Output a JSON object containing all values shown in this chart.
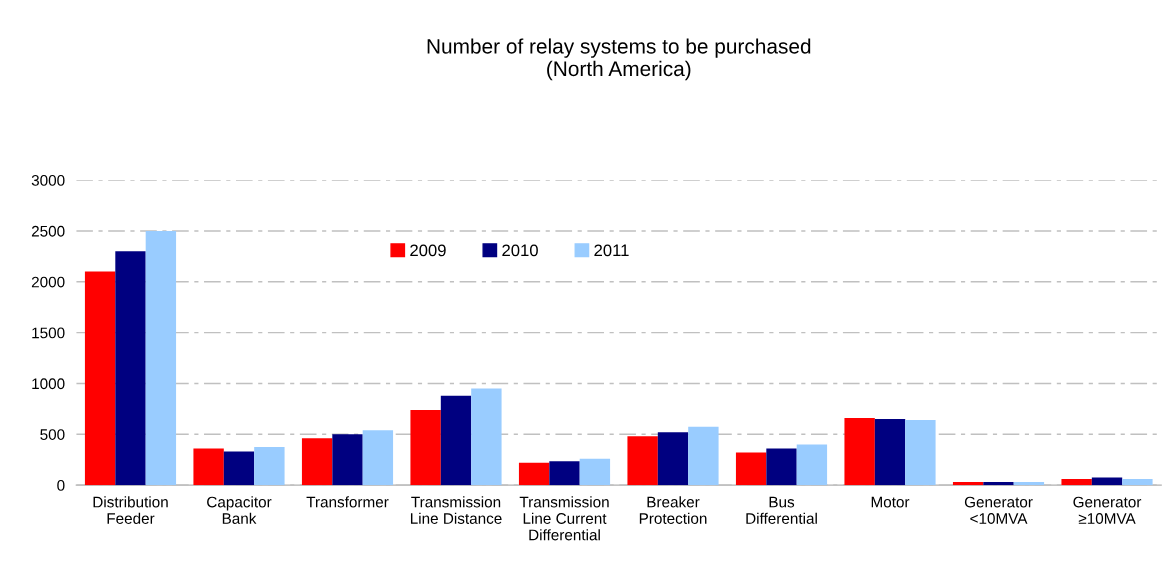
{
  "chart_data": {
    "type": "bar",
    "title": "Number of relay systems to be purchased\n(North America)",
    "categories": [
      "Distribution\nFeeder",
      "Capacitor\nBank",
      "Transformer",
      "Transmission\nLine Distance",
      "Transmission\nLine Current\nDifferential",
      "Breaker\nProtection",
      "Bus\nDifferential",
      "Motor",
      "Generator\n<10MVA",
      "Generator\n≥10MVA"
    ],
    "series": [
      {
        "name": "2009",
        "color": "#ff0000",
        "values": [
          2100,
          360,
          460,
          740,
          220,
          480,
          320,
          660,
          30,
          60
        ]
      },
      {
        "name": "2010",
        "color": "#000080",
        "values": [
          2300,
          330,
          500,
          880,
          235,
          520,
          360,
          650,
          30,
          75
        ]
      },
      {
        "name": "2011",
        "color": "#99ccff",
        "values": [
          2500,
          375,
          540,
          950,
          260,
          575,
          400,
          640,
          30,
          60
        ]
      }
    ],
    "ylim": [
      0,
      3000
    ],
    "yticks": [
      0,
      500,
      1000,
      1500,
      2000,
      2500,
      3000
    ],
    "grid": "y",
    "legend": "top"
  }
}
